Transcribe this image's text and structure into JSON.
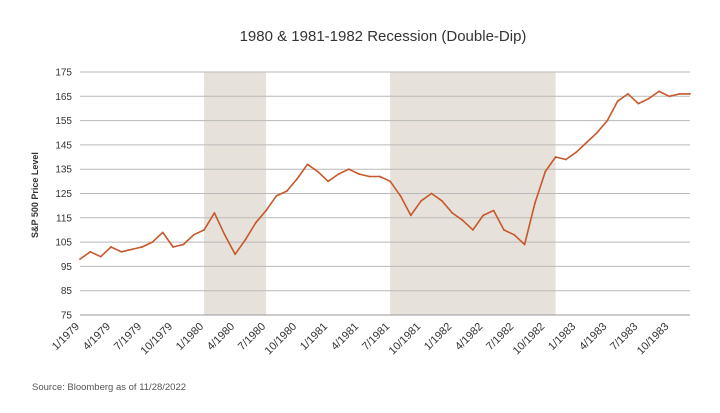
{
  "chart_data": {
    "type": "line",
    "title": "1980 & 1981-1982 Recession (Double-Dip)",
    "ylabel": "S&P 500 Price Level",
    "xlabel": "",
    "source": "Source: Bloomberg as of 11/28/2022",
    "ylim": [
      75,
      175
    ],
    "xlim": [
      "1979-01",
      "1983-12"
    ],
    "yticks": [
      75,
      85,
      95,
      105,
      115,
      125,
      135,
      145,
      155,
      165,
      175
    ],
    "xticks": [
      {
        "label": "1/1979",
        "x": "1979-01"
      },
      {
        "label": "4/1979",
        "x": "1979-04"
      },
      {
        "label": "7/1979",
        "x": "1979-07"
      },
      {
        "label": "10/1979",
        "x": "1979-10"
      },
      {
        "label": "1/1980",
        "x": "1980-01"
      },
      {
        "label": "4/1980",
        "x": "1980-04"
      },
      {
        "label": "7/1980",
        "x": "1980-07"
      },
      {
        "label": "10/1980",
        "x": "1980-10"
      },
      {
        "label": "1/1981",
        "x": "1981-01"
      },
      {
        "label": "4/1981",
        "x": "1981-04"
      },
      {
        "label": "7/1981",
        "x": "1981-07"
      },
      {
        "label": "10/1981",
        "x": "1981-10"
      },
      {
        "label": "1/1982",
        "x": "1982-01"
      },
      {
        "label": "4/1982",
        "x": "1982-04"
      },
      {
        "label": "7/1982",
        "x": "1982-07"
      },
      {
        "label": "10/1982",
        "x": "1982-10"
      },
      {
        "label": "1/1983",
        "x": "1983-01"
      },
      {
        "label": "4/1983",
        "x": "1983-04"
      },
      {
        "label": "7/1983",
        "x": "1983-07"
      },
      {
        "label": "10/1983",
        "x": "1983-10"
      }
    ],
    "recessions": [
      {
        "start": "1980-01",
        "end": "1980-07"
      },
      {
        "start": "1981-07",
        "end": "1982-11"
      }
    ],
    "grid": true,
    "series": [
      {
        "color": "#c8582a",
        "x": [
          "1979-01",
          "1979-02",
          "1979-03",
          "1979-04",
          "1979-05",
          "1979-06",
          "1979-07",
          "1979-08",
          "1979-09",
          "1979-10",
          "1979-11",
          "1979-12",
          "1980-01",
          "1980-02",
          "1980-03",
          "1980-04",
          "1980-05",
          "1980-06",
          "1980-07",
          "1980-08",
          "1980-09",
          "1980-10",
          "1980-11",
          "1980-12",
          "1981-01",
          "1981-02",
          "1981-03",
          "1981-04",
          "1981-05",
          "1981-06",
          "1981-07",
          "1981-08",
          "1981-09",
          "1981-10",
          "1981-11",
          "1981-12",
          "1982-01",
          "1982-02",
          "1982-03",
          "1982-04",
          "1982-05",
          "1982-06",
          "1982-07",
          "1982-08",
          "1982-09",
          "1982-10",
          "1982-11",
          "1982-12",
          "1983-01",
          "1983-02",
          "1983-03",
          "1983-04",
          "1983-05",
          "1983-06",
          "1983-07",
          "1983-08",
          "1983-09",
          "1983-10",
          "1983-11",
          "1983-12"
        ],
        "y": [
          98,
          101,
          99,
          103,
          101,
          102,
          103,
          105,
          109,
          103,
          104,
          108,
          110,
          117,
          108,
          100,
          106,
          113,
          118,
          124,
          126,
          131,
          137,
          134,
          130,
          133,
          135,
          133,
          132,
          132,
          130,
          124,
          116,
          122,
          125,
          122,
          117,
          114,
          110,
          116,
          118,
          110,
          108,
          104,
          121,
          134,
          140,
          139,
          142,
          146,
          150,
          155,
          163,
          166,
          162,
          164,
          167,
          165,
          166,
          166
        ]
      }
    ]
  }
}
